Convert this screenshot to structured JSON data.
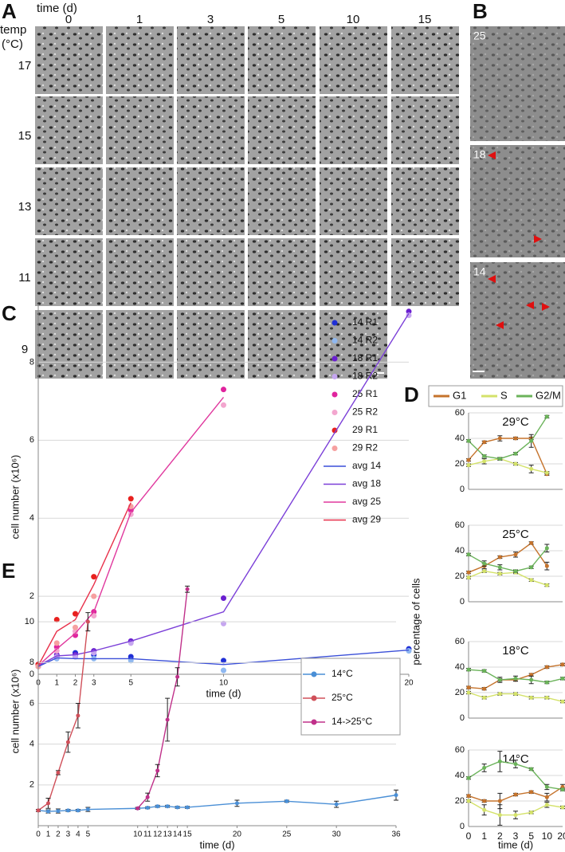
{
  "figure": {
    "panel_letters": [
      "A",
      "B",
      "C",
      "D",
      "E"
    ],
    "panel_a": {
      "time_label": "time (d)",
      "time_points": [
        "0",
        "1",
        "3",
        "5",
        "10",
        "15"
      ],
      "temp_label": [
        "temp",
        "(°C)"
      ],
      "temps": [
        "17",
        "15",
        "13",
        "11",
        "9"
      ]
    },
    "panel_b": {
      "labels": [
        "25",
        "18",
        "14"
      ]
    }
  },
  "chart_data": [
    {
      "type": "line",
      "ylabel": "cell number (x10⁶)",
      "xlabel": "time (d)",
      "x": [
        0,
        1,
        2,
        3,
        5,
        10,
        20
      ],
      "xlim": [
        0,
        20
      ],
      "xticks": [
        0,
        1,
        2,
        3,
        5,
        10,
        20
      ],
      "ylim": [
        0,
        9.5
      ],
      "yticks": [
        0,
        2,
        4,
        6,
        8
      ],
      "grid": true,
      "legend": "right",
      "series": [
        {
          "name": "14 R1",
          "color": "#1f2fd6",
          "style": "points",
          "values": [
            0.2,
            0.45,
            0.55,
            0.5,
            0.45,
            0.35,
            0.65
          ]
        },
        {
          "name": "14 R2",
          "color": "#8fb8f0",
          "style": "points",
          "values": [
            0.2,
            0.4,
            0.45,
            0.4,
            0.35,
            0.1,
            0.6
          ]
        },
        {
          "name": "18 R1",
          "color": "#6a1fd0",
          "style": "points",
          "values": [
            0.25,
            0.5,
            0.5,
            0.6,
            0.85,
            1.95,
            9.3
          ]
        },
        {
          "name": "18 R2",
          "color": "#c6a6f0",
          "style": "points",
          "values": [
            0.2,
            0.45,
            0.45,
            0.55,
            0.8,
            1.3,
            9.2
          ]
        },
        {
          "name": "25 R1",
          "color": "#e0249e",
          "style": "points",
          "values": [
            0.25,
            0.7,
            1.0,
            1.6,
            4.2,
            7.3,
            null
          ]
        },
        {
          "name": "25 R2",
          "color": "#f3a6cf",
          "style": "points",
          "values": [
            0.2,
            0.6,
            1.1,
            1.5,
            4.1,
            6.9,
            null
          ]
        },
        {
          "name": "29 R1",
          "color": "#e8201e",
          "style": "points",
          "values": [
            0.25,
            1.4,
            1.55,
            2.5,
            4.5,
            null,
            null
          ]
        },
        {
          "name": "29 R2",
          "color": "#f6a0a0",
          "style": "points",
          "values": [
            0.2,
            0.8,
            1.2,
            2.0,
            4.3,
            null,
            null
          ]
        },
        {
          "name": "avg 14",
          "color": "#3a4fd8",
          "style": "line",
          "values": [
            0.2,
            0.42,
            0.4,
            0.4,
            0.4,
            0.25,
            0.62
          ]
        },
        {
          "name": "avg 18",
          "color": "#7b3fd8",
          "style": "line",
          "values": [
            0.22,
            0.47,
            0.5,
            0.6,
            0.85,
            1.6,
            9.25
          ]
        },
        {
          "name": "avg 25",
          "color": "#e0389e",
          "style": "line",
          "values": [
            0.22,
            0.65,
            1.05,
            1.6,
            4.15,
            7.1,
            null
          ]
        },
        {
          "name": "avg 29",
          "color": "#e8304a",
          "style": "line",
          "values": [
            0.22,
            1.1,
            1.4,
            2.3,
            4.4,
            null,
            null
          ]
        }
      ]
    },
    {
      "type": "line",
      "ylabel": "percentage of cells",
      "xlabel": "time (d)",
      "categories": [
        "0",
        "1",
        "2",
        "3",
        "5",
        "10",
        "20"
      ],
      "ylim": [
        0,
        60
      ],
      "yticks": [
        0,
        20,
        40,
        60
      ],
      "grid": true,
      "legend": "top",
      "series": [
        {
          "name": "G1",
          "color": "#c5732c"
        },
        {
          "name": "S",
          "color": "#d4e26a"
        },
        {
          "name": "G2/M",
          "color": "#6bb35a"
        }
      ],
      "panels": [
        {
          "title": "29°C",
          "series": [
            {
              "values": [
                23,
                37,
                40,
                40,
                40,
                12,
                null
              ],
              "errors": [
                1,
                1,
                2,
                1,
                1,
                1,
                null
              ]
            },
            {
              "values": [
                19,
                22,
                24,
                20,
                16,
                13,
                null
              ],
              "errors": [
                1,
                2,
                1,
                1,
                3,
                1,
                null
              ]
            },
            {
              "values": [
                38,
                26,
                24,
                28,
                38,
                57,
                null
              ],
              "errors": [
                1,
                1,
                1,
                1,
                5,
                1,
                null
              ]
            }
          ]
        },
        {
          "title": "25°C",
          "series": [
            {
              "values": [
                23,
                28,
                35,
                37,
                46,
                28,
                null
              ],
              "errors": [
                1,
                2,
                1,
                2,
                1,
                3,
                null
              ]
            },
            {
              "values": [
                19,
                24,
                22,
                23,
                17,
                13,
                null
              ],
              "errors": [
                1,
                1,
                1,
                1,
                1,
                1,
                null
              ]
            },
            {
              "values": [
                37,
                30,
                27,
                24,
                27,
                42,
                null
              ],
              "errors": [
                1,
                2,
                2,
                1,
                1,
                3,
                null
              ]
            }
          ]
        },
        {
          "title": "18°C",
          "series": [
            {
              "values": [
                24,
                23,
                30,
                30,
                34,
                40,
                42
              ],
              "errors": [
                1,
                1,
                1,
                1,
                1,
                1,
                1
              ]
            },
            {
              "values": [
                20,
                16,
                19,
                19,
                16,
                16,
                13
              ],
              "errors": [
                1,
                1,
                1,
                1,
                1,
                1,
                1
              ]
            },
            {
              "values": [
                38,
                37,
                30,
                31,
                30,
                28,
                31
              ],
              "errors": [
                1,
                1,
                2,
                2,
                3,
                1,
                1
              ]
            }
          ]
        },
        {
          "title": "14°C",
          "series": [
            {
              "values": [
                24,
                20,
                20,
                25,
                27,
                23,
                31
              ],
              "errors": [
                1,
                1,
                6,
                1,
                1,
                3,
                2
              ]
            },
            {
              "values": [
                20,
                13,
                9,
                9,
                11,
                17,
                15
              ],
              "errors": [
                1,
                4,
                8,
                3,
                1,
                2,
                1
              ]
            },
            {
              "values": [
                38,
                46,
                51,
                49,
                45,
                31,
                29
              ],
              "errors": [
                1,
                3,
                8,
                3,
                1,
                2,
                1
              ]
            }
          ]
        }
      ]
    },
    {
      "type": "line",
      "ylabel": "cell number (x10⁶)",
      "xlabel": "time (d)",
      "xlim": [
        0,
        36
      ],
      "xticks": [
        0,
        1,
        2,
        3,
        4,
        5,
        10,
        11,
        12,
        13,
        14,
        15,
        20,
        25,
        30,
        36
      ],
      "ylim": [
        0,
        12
      ],
      "yticks": [
        2,
        4,
        6,
        8,
        10
      ],
      "grid": true,
      "legend": "right",
      "series": [
        {
          "name": "14°C",
          "color": "#4a8fd6",
          "x": [
            0,
            1,
            2,
            3,
            4,
            5,
            10,
            11,
            12,
            13,
            14,
            15,
            20,
            25,
            30,
            36
          ],
          "values": [
            0.75,
            0.7,
            0.72,
            0.75,
            0.75,
            0.8,
            0.85,
            0.88,
            0.95,
            0.95,
            0.9,
            0.9,
            1.1,
            1.2,
            1.05,
            1.5
          ],
          "errors": [
            0.05,
            0.08,
            0.1,
            0.05,
            0.05,
            0.1,
            0.05,
            0.05,
            0.05,
            0.05,
            0.05,
            0.05,
            0.15,
            0.05,
            0.15,
            0.25
          ]
        },
        {
          "name": "25°C",
          "color": "#d0505a",
          "x": [
            0,
            1,
            2,
            3,
            4,
            5
          ],
          "values": [
            0.75,
            1.1,
            2.6,
            4.1,
            5.4,
            10.0
          ],
          "errors": [
            0.05,
            0.25,
            0.1,
            0.5,
            0.6,
            0.45
          ]
        },
        {
          "name": "14->25°C",
          "color": "#c0308a",
          "x": [
            10,
            11,
            12,
            13,
            14,
            15
          ],
          "values": [
            0.85,
            1.4,
            2.7,
            5.2,
            7.3,
            11.6
          ],
          "errors": [
            0.05,
            0.2,
            0.3,
            1.05,
            0.45,
            0.15
          ]
        }
      ]
    }
  ]
}
